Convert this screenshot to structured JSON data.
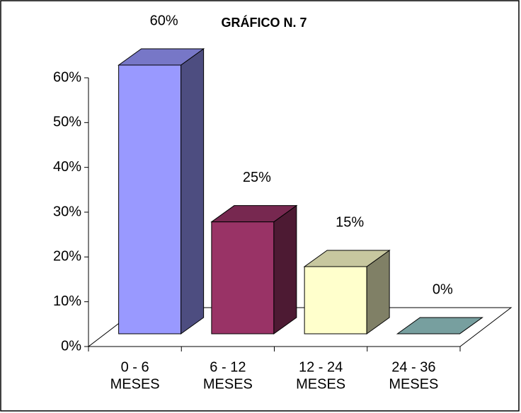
{
  "chart_data": {
    "type": "bar3d",
    "title": "GRÁFICO N. 7",
    "categories": [
      [
        "0 - 6",
        "MESES"
      ],
      [
        "6 - 12",
        "MESES"
      ],
      [
        "12 - 24",
        "MESES"
      ],
      [
        "24 - 36",
        "MESES"
      ]
    ],
    "values": [
      60,
      25,
      15,
      0
    ],
    "value_labels": [
      "60%",
      "25%",
      "15%",
      "0%"
    ],
    "colors": [
      "#9999ff",
      "#993366",
      "#ffffcc",
      "#99cccc"
    ],
    "ylim": [
      0,
      60
    ],
    "yticks": [
      {
        "value": 0,
        "label": "0%"
      },
      {
        "value": 10,
        "label": "10%"
      },
      {
        "value": 20,
        "label": "20%"
      },
      {
        "value": 30,
        "label": "30%"
      },
      {
        "value": 40,
        "label": "40%"
      },
      {
        "value": 50,
        "label": "50%"
      },
      {
        "value": 60,
        "label": "60%"
      }
    ]
  }
}
